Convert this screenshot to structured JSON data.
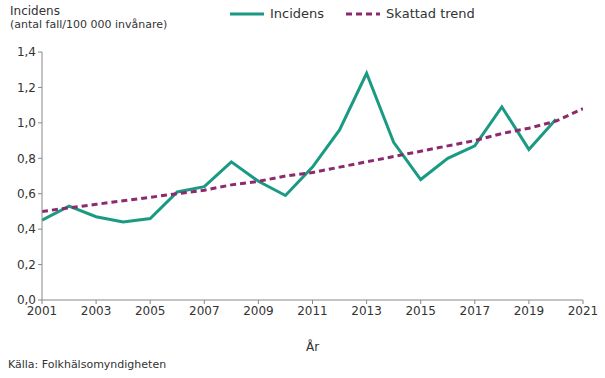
{
  "chart_data": {
    "type": "line",
    "y_label_lines": [
      "Incidens",
      "(antal fall/100 000 invånare)"
    ],
    "x_label": "År",
    "source": "Källa: Folkhälsomyndigheten",
    "x": [
      2001,
      2002,
      2003,
      2004,
      2005,
      2006,
      2007,
      2008,
      2009,
      2010,
      2011,
      2012,
      2013,
      2014,
      2015,
      2016,
      2017,
      2018,
      2019,
      2020,
      2021
    ],
    "series": [
      {
        "name": "Incidens",
        "color": "#1a9a82",
        "line_style": "solid",
        "values": [
          0.45,
          0.53,
          0.47,
          0.44,
          0.46,
          0.61,
          0.64,
          0.78,
          0.67,
          0.59,
          0.75,
          0.96,
          1.28,
          0.89,
          0.68,
          0.8,
          0.87,
          1.09,
          0.85,
          1.02,
          null
        ]
      },
      {
        "name": "Skattad trend",
        "color": "#8b2a6e",
        "line_style": "dashed",
        "values": [
          0.5,
          0.52,
          0.54,
          0.56,
          0.58,
          0.6,
          0.62,
          0.65,
          0.67,
          0.7,
          0.72,
          0.75,
          0.78,
          0.81,
          0.84,
          0.87,
          0.9,
          0.94,
          0.97,
          1.01,
          1.08
        ]
      }
    ],
    "xlim": [
      2001,
      2021
    ],
    "xticks": [
      2001,
      2003,
      2005,
      2007,
      2009,
      2011,
      2013,
      2015,
      2017,
      2019,
      2021
    ],
    "ylim": [
      0,
      1.4
    ],
    "yticks": [
      {
        "value": 0,
        "label": "0,0"
      },
      {
        "value": 0.2,
        "label": "0,2"
      },
      {
        "value": 0.4,
        "label": "0,4"
      },
      {
        "value": 0.6,
        "label": "0,6"
      },
      {
        "value": 0.8,
        "label": "0,8"
      },
      {
        "value": 1.0,
        "label": "1,0"
      },
      {
        "value": 1.2,
        "label": "1,2"
      },
      {
        "value": 1.4,
        "label": "1,4"
      }
    ],
    "grid": false,
    "legend": "top"
  }
}
